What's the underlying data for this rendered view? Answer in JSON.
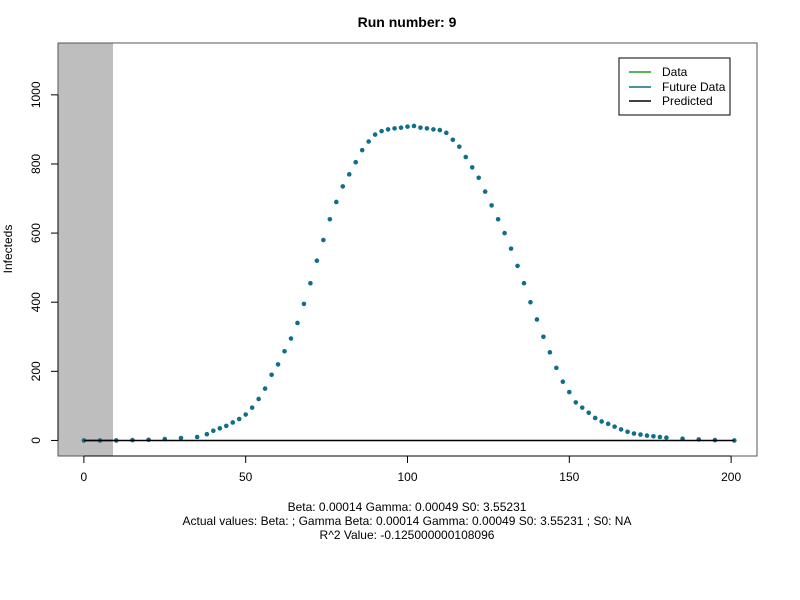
{
  "chart_data": {
    "type": "scatter",
    "title": "Run number:  9",
    "xlabel": "",
    "ylabel": "Infecteds",
    "xlim": [
      -8,
      208
    ],
    "ylim": [
      -45,
      1150
    ],
    "x_ticks": [
      0,
      50,
      100,
      150,
      200
    ],
    "y_ticks": [
      0,
      200,
      400,
      600,
      800,
      1000
    ],
    "shaded_region": {
      "x_from": -8,
      "x_to": 9,
      "color": "#bebebe"
    },
    "legend": {
      "position": "top-right",
      "entries": [
        {
          "label": "Data",
          "color": "#1aa11a"
        },
        {
          "label": "Future Data",
          "color": "#0f6e8c"
        },
        {
          "label": "Predicted",
          "color": "#000000"
        }
      ]
    },
    "series": [
      {
        "name": "Data",
        "color": "#1aa11a",
        "kind": "line",
        "x": [
          0,
          9
        ],
        "y": [
          0,
          0
        ]
      },
      {
        "name": "Future Data",
        "color": "#0f6e8c",
        "kind": "points",
        "x": [
          0,
          5,
          10,
          15,
          20,
          25,
          30,
          35,
          38,
          40,
          42,
          44,
          46,
          48,
          50,
          52,
          54,
          56,
          58,
          60,
          62,
          64,
          66,
          68,
          70,
          72,
          74,
          76,
          78,
          80,
          82,
          84,
          86,
          88,
          90,
          92,
          94,
          96,
          98,
          100,
          102,
          104,
          106,
          108,
          110,
          112,
          114,
          116,
          118,
          120,
          122,
          124,
          126,
          128,
          130,
          132,
          134,
          136,
          138,
          140,
          142,
          144,
          146,
          148,
          150,
          152,
          154,
          156,
          158,
          160,
          162,
          164,
          166,
          168,
          170,
          172,
          174,
          176,
          178,
          180,
          185,
          190,
          195,
          201
        ],
        "y": [
          0,
          0,
          0,
          1,
          2,
          4,
          7,
          10,
          18,
          28,
          35,
          42,
          52,
          62,
          75,
          95,
          120,
          150,
          190,
          220,
          258,
          295,
          340,
          395,
          455,
          520,
          580,
          640,
          690,
          735,
          770,
          805,
          840,
          865,
          885,
          895,
          900,
          903,
          905,
          908,
          910,
          905,
          903,
          900,
          898,
          890,
          870,
          850,
          820,
          790,
          760,
          720,
          680,
          640,
          600,
          555,
          505,
          455,
          400,
          350,
          300,
          255,
          210,
          170,
          140,
          110,
          95,
          80,
          65,
          55,
          48,
          40,
          32,
          25,
          20,
          17,
          14,
          12,
          10,
          8,
          5,
          3,
          1,
          0
        ]
      },
      {
        "name": "Predicted",
        "color": "#000000",
        "kind": "line",
        "x": [
          0,
          201
        ],
        "y": [
          0,
          0
        ]
      }
    ],
    "footer_lines": [
      "Beta:  0.00014 Gamma:  0.00049 S0:  3.55231",
      "Actual values: Beta:     ; Gamma  Beta:  0.00014 Gamma:  0.00049 S0:  3.55231 ; S0:  NA",
      "R^2 Value:  -0.125000000108096"
    ]
  }
}
